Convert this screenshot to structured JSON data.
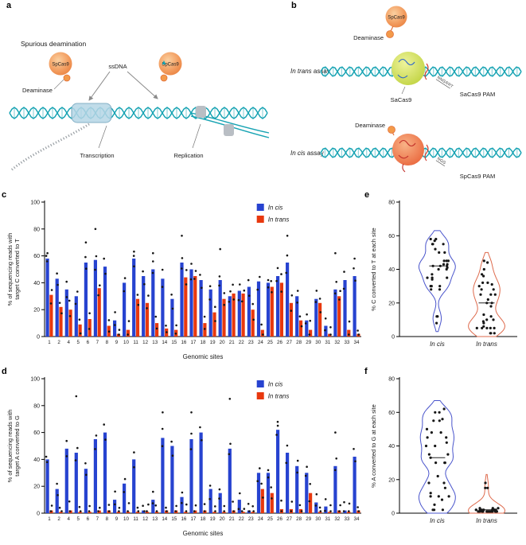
{
  "panels": {
    "a": "a",
    "b": "b",
    "c": "c",
    "d": "d",
    "e": "e",
    "f": "f"
  },
  "colors": {
    "cis": "#2743d0",
    "trans": "#e8380e",
    "dna": "#17a3b3",
    "dot": "#161616",
    "violin_cis": "#4a55cc",
    "violin_trans": "#de6a4c"
  },
  "diagram_a": {
    "title": "Spurious deamination",
    "spcas9": "SpCas9",
    "ssdna": "ssDNA",
    "deaminase": "Deaminase",
    "transcription": "Transcription",
    "replication": "Replication"
  },
  "diagram_b": {
    "trans_assay_italic": "In trans",
    "cis_assay_italic": "In cis",
    "assay_suffix": " assay",
    "deaminase": "Deaminase",
    "spcas9": "SpCas9",
    "sacas9": "SaCas9",
    "sacas9_pam": "SaCas9 PAM",
    "spcas9_pam": "SpCas9 PAM",
    "pam_trans_seq": "NNGRRT",
    "pam_cis_seq": "NGG"
  },
  "chart_data": [
    {
      "id": "c",
      "type": "bar",
      "xlabel": "Genomic sites",
      "ylabel_lines": [
        "% of sequencing reads with",
        "target C converted to T"
      ],
      "ylim": [
        0,
        100
      ],
      "yticks": [
        0,
        20,
        40,
        60,
        80,
        100
      ],
      "categories": [
        "1",
        "2",
        "4",
        "5",
        "6",
        "7",
        "8",
        "9",
        "10",
        "11",
        "12",
        "13",
        "14",
        "15",
        "16",
        "17",
        "18",
        "19",
        "20",
        "21",
        "22",
        "23",
        "24",
        "25",
        "26",
        "27",
        "28",
        "29",
        "30",
        "31",
        "32",
        "33",
        "34"
      ],
      "series": [
        {
          "name": "In cis",
          "color_key": "cis",
          "values": [
            58,
            43,
            35,
            30,
            55,
            57,
            52,
            12,
            40,
            58,
            45,
            50,
            43,
            28,
            55,
            50,
            42,
            35,
            42,
            30,
            34,
            37,
            41,
            40,
            45,
            55,
            30,
            12,
            28,
            8,
            35,
            42,
            45
          ]
        },
        {
          "name": "In trans",
          "color_key": "trans",
          "values": [
            31,
            22,
            20,
            9,
            13,
            36,
            8,
            2,
            5,
            28,
            25,
            10,
            6,
            5,
            44,
            45,
            10,
            18,
            28,
            32,
            32,
            20,
            5,
            37,
            40,
            25,
            12,
            5,
            25,
            2,
            30,
            5,
            2
          ]
        }
      ],
      "outliers": [
        {
          "series": 0,
          "i": 0,
          "v": 62
        },
        {
          "series": 0,
          "i": 4,
          "v": 70
        },
        {
          "series": 0,
          "i": 5,
          "v": 80
        },
        {
          "series": 0,
          "i": 9,
          "v": 60
        },
        {
          "series": 0,
          "i": 11,
          "v": 62
        },
        {
          "series": 0,
          "i": 14,
          "v": 75
        },
        {
          "series": 0,
          "i": 18,
          "v": 65
        },
        {
          "series": 0,
          "i": 25,
          "v": 75
        },
        {
          "series": 0,
          "i": 30,
          "v": 62
        },
        {
          "series": 0,
          "i": 32,
          "v": 58
        }
      ]
    },
    {
      "id": "d",
      "type": "bar",
      "xlabel": "Genomic sites",
      "ylabel_lines": [
        "% of sequencing reads with",
        "target A converted to  G"
      ],
      "ylim": [
        0,
        100
      ],
      "yticks": [
        0,
        20,
        40,
        60,
        80,
        100
      ],
      "categories": [
        "1",
        "2",
        "4",
        "5",
        "6",
        "7",
        "8",
        "9",
        "10",
        "11",
        "12",
        "13",
        "14",
        "15",
        "16",
        "17",
        "18",
        "19",
        "20",
        "21",
        "22",
        "23",
        "24",
        "25",
        "26",
        "27",
        "28",
        "29",
        "30",
        "31",
        "32",
        "33",
        "34"
      ],
      "series": [
        {
          "name": "In cis",
          "color_key": "cis",
          "values": [
            40,
            18,
            48,
            45,
            33,
            55,
            60,
            10,
            22,
            40,
            2,
            10,
            56,
            50,
            12,
            55,
            60,
            18,
            15,
            48,
            10,
            2,
            30,
            30,
            62,
            45,
            35,
            30,
            8,
            5,
            35,
            2,
            42
          ]
        },
        {
          "name": "In trans",
          "color_key": "trans",
          "values": [
            2,
            1,
            2,
            1,
            1,
            2,
            2,
            1,
            1,
            1,
            1,
            1,
            2,
            2,
            1,
            2,
            2,
            1,
            1,
            2,
            1,
            1,
            18,
            15,
            3,
            3,
            3,
            15,
            1,
            1,
            2,
            1,
            2
          ]
        }
      ],
      "outliers": [
        {
          "series": 0,
          "i": 3,
          "v": 87
        },
        {
          "series": 0,
          "i": 12,
          "v": 75
        },
        {
          "series": 0,
          "i": 15,
          "v": 75
        },
        {
          "series": 0,
          "i": 19,
          "v": 85
        },
        {
          "series": 0,
          "i": 24,
          "v": 65
        },
        {
          "series": 0,
          "i": 30,
          "v": 60
        }
      ]
    },
    {
      "id": "e",
      "type": "violin",
      "ylabel": "% C converted to T at each site",
      "ylim": [
        0,
        80
      ],
      "yticks": [
        0,
        20,
        40,
        60,
        80
      ],
      "groups": [
        {
          "label": "In cis",
          "color_key": "violin_cis",
          "points": [
            58,
            43,
            35,
            30,
            55,
            57,
            52,
            12,
            40,
            58,
            45,
            50,
            43,
            28,
            55,
            50,
            42,
            35,
            42,
            30,
            34,
            37,
            41,
            40,
            45,
            55,
            30,
            12,
            28,
            8,
            35,
            42,
            45
          ]
        },
        {
          "label": "In trans",
          "color_key": "violin_trans",
          "points": [
            31,
            22,
            20,
            9,
            13,
            36,
            8,
            2,
            5,
            28,
            25,
            10,
            6,
            5,
            44,
            45,
            10,
            18,
            28,
            32,
            32,
            20,
            5,
            37,
            40,
            25,
            12,
            5,
            25,
            2,
            30,
            5,
            2
          ]
        }
      ]
    },
    {
      "id": "f",
      "type": "violin",
      "ylabel": "% A converted to G at each site",
      "ylim": [
        0,
        80
      ],
      "yticks": [
        0,
        20,
        40,
        60,
        80
      ],
      "groups": [
        {
          "label": "In cis",
          "color_key": "violin_cis",
          "points": [
            40,
            18,
            48,
            45,
            33,
            55,
            60,
            10,
            22,
            40,
            2,
            10,
            56,
            50,
            12,
            55,
            60,
            18,
            15,
            48,
            10,
            2,
            30,
            30,
            62,
            45,
            35,
            30,
            8,
            5,
            35,
            2,
            42
          ]
        },
        {
          "label": "In trans",
          "color_key": "violin_trans",
          "points": [
            2,
            1,
            2,
            1,
            1,
            2,
            2,
            1,
            1,
            1,
            1,
            1,
            2,
            2,
            1,
            2,
            2,
            1,
            1,
            2,
            1,
            1,
            18,
            15,
            3,
            3,
            3,
            15,
            1,
            1,
            2,
            1,
            2
          ]
        }
      ]
    }
  ]
}
